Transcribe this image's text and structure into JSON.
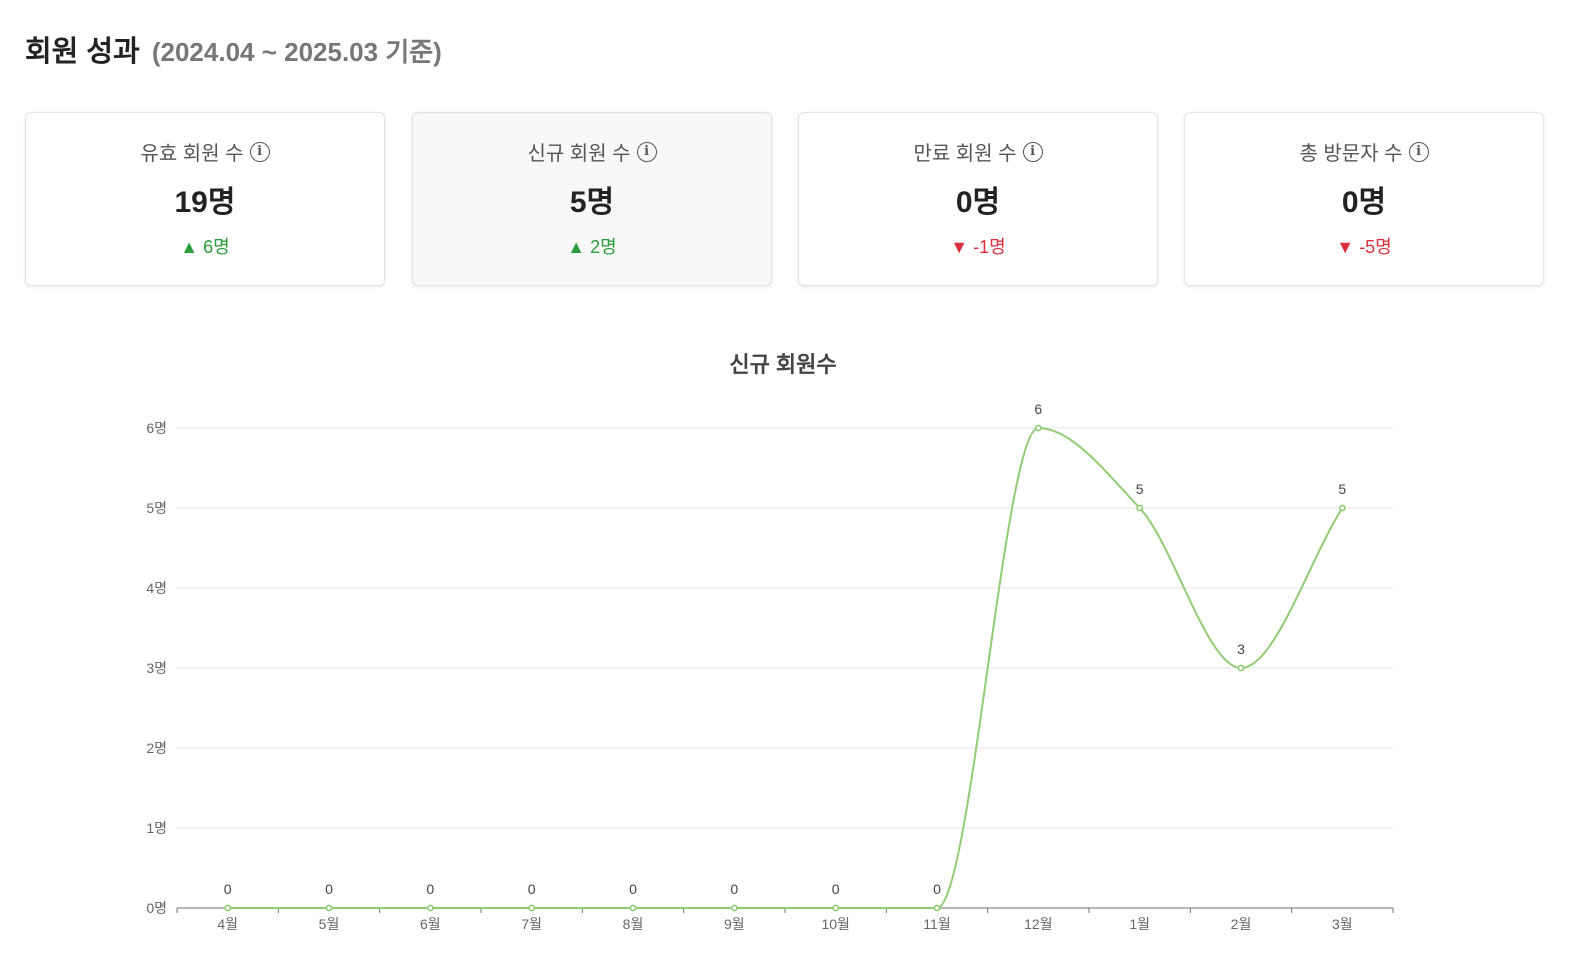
{
  "header": {
    "title": "회원 성과",
    "period": "(2024.04 ~ 2025.03 기준)"
  },
  "cards": [
    {
      "label": "유효 회원 수",
      "value": "19명",
      "delta_arrow": "▲",
      "delta": "6명",
      "trend": "up"
    },
    {
      "label": "신규 회원 수",
      "value": "5명",
      "delta_arrow": "▲",
      "delta": "2명",
      "trend": "up"
    },
    {
      "label": "만료 회원 수",
      "value": "0명",
      "delta_arrow": "▼",
      "delta": "-1명",
      "trend": "down"
    },
    {
      "label": "총 방문자 수",
      "value": "0명",
      "delta_arrow": "▼",
      "delta": "-5명",
      "trend": "down"
    }
  ],
  "info_icon": "info-icon",
  "colors": {
    "up": "#2a9d3a",
    "down": "#dc2f3d",
    "line": "#91cc75"
  },
  "chart_data": {
    "type": "line",
    "title": "신규 회원수",
    "categories": [
      "4월",
      "5월",
      "6월",
      "7월",
      "8월",
      "9월",
      "10월",
      "11월",
      "12월",
      "1월",
      "2월",
      "3월"
    ],
    "series": [
      {
        "values": [
          0,
          0,
          0,
          0,
          0,
          0,
          0,
          0,
          6,
          5,
          3,
          5
        ]
      }
    ],
    "y_ticks": [
      "0명",
      "1명",
      "2명",
      "3명",
      "4명",
      "5명",
      "6명"
    ],
    "ylim": [
      0,
      6
    ],
    "grid": true,
    "smooth": true,
    "data_labels": true
  }
}
